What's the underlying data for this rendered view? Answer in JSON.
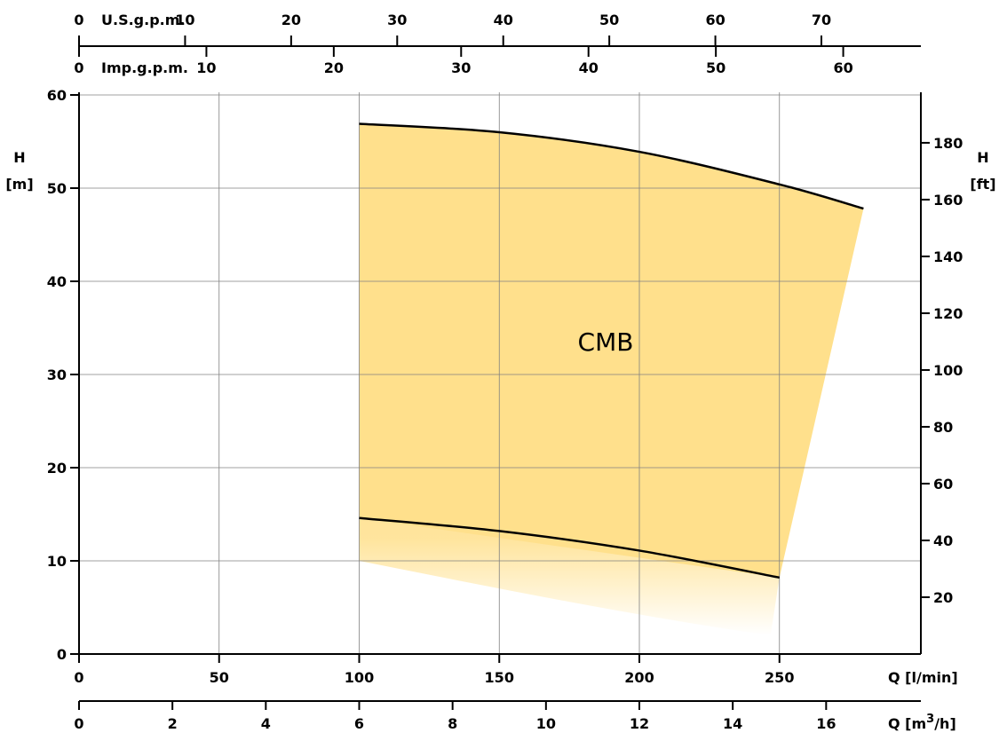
{
  "chart_data": {
    "type": "area",
    "label": "CMB",
    "fill_color": "#FFE08C",
    "x_primary": {
      "label": "Q [l/min]",
      "lim": [
        0,
        300
      ],
      "ticks": [
        0,
        50,
        100,
        150,
        200,
        250
      ]
    },
    "x_m3h": {
      "label": "Q [m",
      "label_sup": "3",
      "label_end": "/h]",
      "ticks": [
        0,
        2,
        4,
        6,
        8,
        10,
        12,
        14,
        16
      ]
    },
    "x_usgpm": {
      "label": "U.S.g.p.m.",
      "ticks": [
        0,
        10,
        20,
        30,
        40,
        50,
        60,
        70
      ]
    },
    "x_impgpm": {
      "label": "Imp.g.p.m.",
      "ticks": [
        0,
        10,
        20,
        30,
        40,
        50,
        60
      ]
    },
    "y_left": {
      "label_line1": "H",
      "label_line2": "[m]",
      "lim": [
        0,
        60
      ],
      "ticks": [
        0,
        10,
        20,
        30,
        40,
        50,
        60
      ]
    },
    "y_right": {
      "label_line1": "H",
      "label_line2": "[ft]",
      "ticks": [
        20,
        40,
        60,
        80,
        100,
        120,
        140,
        160,
        180
      ]
    },
    "max_curve": [
      {
        "x": 100,
        "y": 56.9
      },
      {
        "x": 150,
        "y": 56.0
      },
      {
        "x": 200,
        "y": 53.9
      },
      {
        "x": 250,
        "y": 50.4
      },
      {
        "x": 280,
        "y": 47.8
      }
    ],
    "min_curve": [
      {
        "x": 100,
        "y": 14.6
      },
      {
        "x": 150,
        "y": 13.2
      },
      {
        "x": 200,
        "y": 11.1
      },
      {
        "x": 250,
        "y": 8.2
      }
    ]
  }
}
